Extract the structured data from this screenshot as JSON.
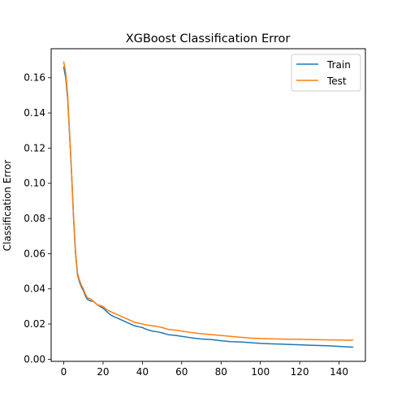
{
  "chart_data": {
    "type": "line",
    "title": "XGBoost Classification Error",
    "xlabel": "",
    "ylabel": "Classification Error",
    "xlim": [
      -6.4,
      153.4
    ],
    "ylim": [
      -0.0012,
      0.1765
    ],
    "xticks": [
      0,
      20,
      40,
      60,
      80,
      100,
      120,
      140
    ],
    "yticks": [
      0.0,
      0.02,
      0.04,
      0.06,
      0.08,
      0.1,
      0.12,
      0.14,
      0.16
    ],
    "ytick_labels": [
      "0.00",
      "0.02",
      "0.04",
      "0.06",
      "0.08",
      "0.10",
      "0.12",
      "0.14",
      "0.16"
    ],
    "grid": false,
    "legend_position": "top-right",
    "series": [
      {
        "name": "Train",
        "color": "#1f77b4",
        "points": [
          [
            0,
            0.166
          ],
          [
            1,
            0.16
          ],
          [
            2,
            0.148
          ],
          [
            3,
            0.127
          ],
          [
            4,
            0.105
          ],
          [
            5,
            0.08
          ],
          [
            6,
            0.06
          ],
          [
            7,
            0.048
          ],
          [
            8,
            0.044
          ],
          [
            9,
            0.041
          ],
          [
            10,
            0.039
          ],
          [
            11,
            0.036
          ],
          [
            12,
            0.034
          ],
          [
            14,
            0.033
          ],
          [
            15,
            0.033
          ],
          [
            17,
            0.031
          ],
          [
            20,
            0.029
          ],
          [
            22,
            0.027
          ],
          [
            24,
            0.025
          ],
          [
            26,
            0.024
          ],
          [
            28,
            0.023
          ],
          [
            30,
            0.022
          ],
          [
            32,
            0.021
          ],
          [
            34,
            0.02
          ],
          [
            36,
            0.019
          ],
          [
            38,
            0.0185
          ],
          [
            40,
            0.018
          ],
          [
            42,
            0.017
          ],
          [
            45,
            0.016
          ],
          [
            48,
            0.0155
          ],
          [
            50,
            0.015
          ],
          [
            53,
            0.014
          ],
          [
            57,
            0.0135
          ],
          [
            60,
            0.013
          ],
          [
            63,
            0.0125
          ],
          [
            66,
            0.012
          ],
          [
            70,
            0.0115
          ],
          [
            75,
            0.0112
          ],
          [
            80,
            0.0105
          ],
          [
            85,
            0.01
          ],
          [
            90,
            0.0098
          ],
          [
            95,
            0.0094
          ],
          [
            100,
            0.009
          ],
          [
            105,
            0.0088
          ],
          [
            110,
            0.0086
          ],
          [
            115,
            0.0084
          ],
          [
            120,
            0.0082
          ],
          [
            125,
            0.008
          ],
          [
            130,
            0.0078
          ],
          [
            135,
            0.0076
          ],
          [
            140,
            0.0073
          ],
          [
            145,
            0.007
          ],
          [
            147,
            0.0069
          ]
        ]
      },
      {
        "name": "Test",
        "color": "#ff7f0e",
        "points": [
          [
            0,
            0.169
          ],
          [
            1,
            0.163
          ],
          [
            2,
            0.15
          ],
          [
            3,
            0.128
          ],
          [
            4,
            0.106
          ],
          [
            5,
            0.081
          ],
          [
            6,
            0.061
          ],
          [
            7,
            0.049
          ],
          [
            8,
            0.045
          ],
          [
            9,
            0.042
          ],
          [
            10,
            0.04
          ],
          [
            11,
            0.037
          ],
          [
            12,
            0.035
          ],
          [
            14,
            0.034
          ],
          [
            15,
            0.033
          ],
          [
            17,
            0.031
          ],
          [
            20,
            0.03
          ],
          [
            22,
            0.028
          ],
          [
            24,
            0.027
          ],
          [
            26,
            0.026
          ],
          [
            28,
            0.025
          ],
          [
            30,
            0.024
          ],
          [
            32,
            0.023
          ],
          [
            34,
            0.022
          ],
          [
            36,
            0.021
          ],
          [
            38,
            0.0205
          ],
          [
            40,
            0.02
          ],
          [
            42,
            0.0195
          ],
          [
            45,
            0.019
          ],
          [
            48,
            0.0185
          ],
          [
            50,
            0.018
          ],
          [
            53,
            0.017
          ],
          [
            57,
            0.0165
          ],
          [
            60,
            0.016
          ],
          [
            63,
            0.0155
          ],
          [
            66,
            0.015
          ],
          [
            70,
            0.0145
          ],
          [
            75,
            0.014
          ],
          [
            80,
            0.0135
          ],
          [
            85,
            0.013
          ],
          [
            90,
            0.0125
          ],
          [
            95,
            0.012
          ],
          [
            100,
            0.0118
          ],
          [
            105,
            0.0116
          ],
          [
            110,
            0.0115
          ],
          [
            115,
            0.0114
          ],
          [
            120,
            0.0113
          ],
          [
            125,
            0.0112
          ],
          [
            130,
            0.0111
          ],
          [
            135,
            0.011
          ],
          [
            140,
            0.0109
          ],
          [
            145,
            0.0108
          ],
          [
            147,
            0.0108
          ]
        ]
      }
    ]
  }
}
